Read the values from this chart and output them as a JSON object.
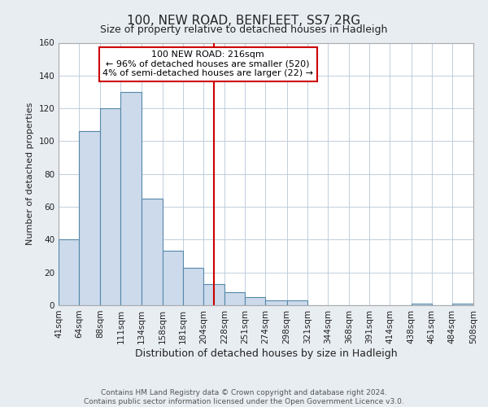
{
  "title": "100, NEW ROAD, BENFLEET, SS7 2RG",
  "subtitle": "Size of property relative to detached houses in Hadleigh",
  "xlabel": "Distribution of detached houses by size in Hadleigh",
  "ylabel": "Number of detached properties",
  "bin_edges": [
    41,
    64,
    88,
    111,
    134,
    158,
    181,
    204,
    228,
    251,
    274,
    298,
    321,
    344,
    368,
    391,
    414,
    438,
    461,
    484,
    508
  ],
  "bar_heights": [
    40,
    106,
    120,
    130,
    65,
    33,
    23,
    13,
    8,
    5,
    3,
    3,
    0,
    0,
    0,
    0,
    0,
    1,
    0,
    1
  ],
  "bar_color": "#ccdaeb",
  "bar_edge_color": "#5588aa",
  "property_value": 216,
  "vline_color": "#cc0000",
  "annotation_box_edge_color": "#cc0000",
  "annotation_text_line1": "100 NEW ROAD: 216sqm",
  "annotation_text_line2": "← 96% of detached houses are smaller (520)",
  "annotation_text_line3": "4% of semi-detached houses are larger (22) →",
  "ylim": [
    0,
    160
  ],
  "yticks": [
    0,
    20,
    40,
    60,
    80,
    100,
    120,
    140,
    160
  ],
  "tick_labels": [
    "41sqm",
    "64sqm",
    "88sqm",
    "111sqm",
    "134sqm",
    "158sqm",
    "181sqm",
    "204sqm",
    "228sqm",
    "251sqm",
    "274sqm",
    "298sqm",
    "321sqm",
    "344sqm",
    "368sqm",
    "391sqm",
    "414sqm",
    "438sqm",
    "461sqm",
    "484sqm",
    "508sqm"
  ],
  "footer_line1": "Contains HM Land Registry data © Crown copyright and database right 2024.",
  "footer_line2": "Contains public sector information licensed under the Open Government Licence v3.0.",
  "background_color": "#e8edf2",
  "plot_bg_color": "#ffffff",
  "grid_color": "#b8c8d8",
  "title_fontsize": 11,
  "subtitle_fontsize": 9,
  "xlabel_fontsize": 9,
  "ylabel_fontsize": 8,
  "tick_fontsize": 7.5,
  "annotation_fontsize": 8,
  "footer_fontsize": 6.5
}
